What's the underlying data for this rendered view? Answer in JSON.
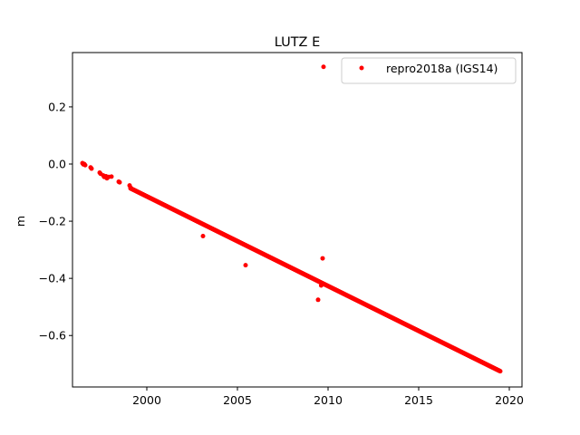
{
  "chart_data": {
    "type": "scatter",
    "title": "LUTZ E",
    "xlabel": "",
    "ylabel": "m",
    "xlim": [
      1995.9,
      2020.7
    ],
    "ylim": [
      -0.78,
      0.39
    ],
    "xticks": [
      2000,
      2005,
      2010,
      2015,
      2020
    ],
    "yticks": [
      0.2,
      0.0,
      -0.2,
      -0.4,
      -0.6
    ],
    "ytick_labels": [
      "0.2",
      "0.0",
      "−0.2",
      "−0.4",
      "−0.6"
    ],
    "grid": false,
    "legend": {
      "location": "top-right"
    },
    "series": [
      {
        "name": "repro2018a (IGS14)",
        "color": "#ff0000",
        "marker": "circle",
        "trend": {
          "x_start": 1999.1,
          "x_end": 2019.5,
          "y_start": -0.085,
          "y_end": -0.725,
          "step": 0.02
        },
        "points": [
          [
            1996.45,
            0.003
          ],
          [
            1996.5,
            -0.001
          ],
          [
            1996.55,
            0.0
          ],
          [
            1996.6,
            -0.004
          ],
          [
            1996.9,
            -0.012
          ],
          [
            1996.95,
            -0.016
          ],
          [
            1997.4,
            -0.03
          ],
          [
            1997.45,
            -0.034
          ],
          [
            1997.6,
            -0.04
          ],
          [
            1997.65,
            -0.045
          ],
          [
            1997.75,
            -0.043
          ],
          [
            1997.8,
            -0.05
          ],
          [
            1997.9,
            -0.045
          ],
          [
            1998.05,
            -0.044
          ],
          [
            1998.45,
            -0.062
          ],
          [
            1998.5,
            -0.064
          ],
          [
            1999.05,
            -0.075
          ],
          [
            1999.1,
            -0.082
          ],
          [
            2003.1,
            -0.252
          ],
          [
            2005.45,
            -0.354
          ],
          [
            2009.45,
            -0.475
          ],
          [
            2009.62,
            -0.425
          ],
          [
            2009.75,
            0.34
          ],
          [
            2009.7,
            -0.33
          ]
        ]
      }
    ]
  }
}
